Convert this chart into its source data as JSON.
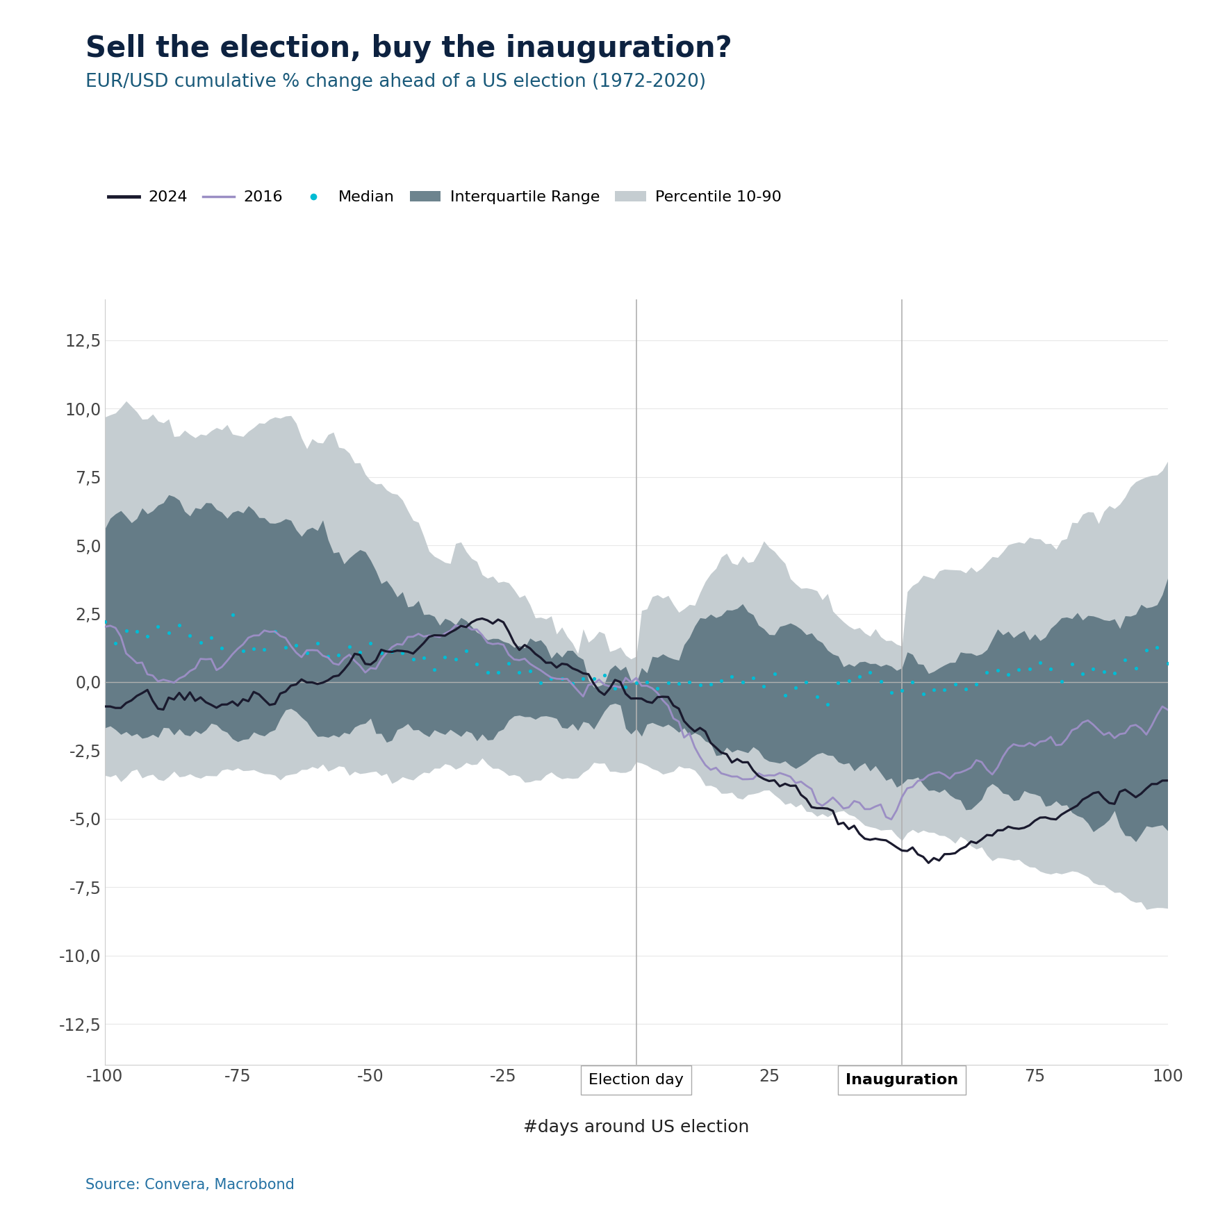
{
  "title": "Sell the election, buy the inauguration?",
  "subtitle": "EUR/USD cumulative % change ahead of a US election (1972-2020)",
  "xlabel": "#days around US election",
  "source": "Source: Convera, Macrobond",
  "title_color": "#0d2240",
  "subtitle_color": "#1a5a7a",
  "source_color": "#2471a3",
  "color_2024": "#1a1a2e",
  "color_2016": "#9b8ec4",
  "color_median": "#00bcd4",
  "color_iqr": "#546e7a",
  "color_p1090": "#c5cdd1",
  "ylim": [
    -14,
    14
  ],
  "yticks": [
    -12.5,
    -10.0,
    -7.5,
    -5.0,
    -2.5,
    0.0,
    2.5,
    5.0,
    7.5,
    10.0,
    12.5
  ],
  "xlim": [
    -100,
    100
  ],
  "xticks": [
    -100,
    -75,
    -50,
    -25,
    25,
    75,
    100
  ]
}
